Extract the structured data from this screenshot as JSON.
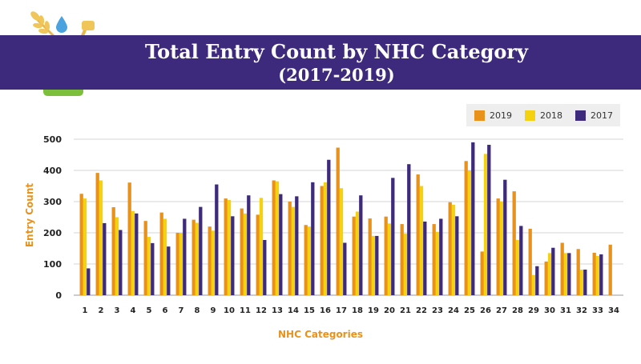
{
  "header": {
    "title": "Total Entry Count by NHC Category",
    "subtitle": "(2017-2019)"
  },
  "logo": {
    "name": "jar-with-wheat-and-water-drop-icon"
  },
  "colors": {
    "banner": "#3d2a7d",
    "s2019": "#e8921c",
    "s2018": "#f5d20f",
    "s2017": "#3d2a7d",
    "axis_label": "#e8921c",
    "gridline": "#d4d4d4"
  },
  "legend": [
    {
      "name": "2019",
      "color": "#e8921c"
    },
    {
      "name": "2018",
      "color": "#f5d20f"
    },
    {
      "name": "2017",
      "color": "#3d2a7d"
    }
  ],
  "chart_data": {
    "type": "bar",
    "title": "Total Entry Count by NHC Category (2017-2019)",
    "xlabel": "NHC Categories",
    "ylabel": "Entry Count",
    "ylim": [
      0,
      500
    ],
    "yticks": [
      0,
      100,
      200,
      300,
      400,
      500
    ],
    "grid": true,
    "legend_position": "top-right",
    "categories": [
      "1",
      "2",
      "3",
      "4",
      "5",
      "6",
      "7",
      "8",
      "9",
      "10",
      "11",
      "12",
      "13",
      "14",
      "15",
      "16",
      "17",
      "18",
      "19",
      "20",
      "21",
      "22",
      "23",
      "24",
      "25",
      "26",
      "27",
      "28",
      "29",
      "30",
      "31",
      "32",
      "33",
      "34"
    ],
    "series": [
      {
        "name": "2019",
        "values": [
          325,
          392,
          282,
          361,
          238,
          265,
          200,
          242,
          220,
          310,
          278,
          258,
          368,
          300,
          225,
          350,
          473,
          252,
          246,
          252,
          228,
          387,
          228,
          298,
          430,
          140,
          310,
          333,
          213,
          108,
          168,
          148,
          136,
          162
        ]
      },
      {
        "name": "2018",
        "values": [
          310,
          368,
          250,
          270,
          187,
          245,
          200,
          232,
          207,
          305,
          262,
          312,
          365,
          283,
          220,
          362,
          343,
          268,
          190,
          230,
          197,
          350,
          203,
          290,
          400,
          453,
          300,
          177,
          65,
          135,
          135,
          82,
          126,
          null
        ]
      },
      {
        "name": "2017",
        "values": [
          86,
          231,
          209,
          262,
          167,
          156,
          245,
          283,
          355,
          253,
          320,
          177,
          324,
          317,
          362,
          434,
          168,
          320,
          190,
          376,
          420,
          236,
          245,
          253,
          490,
          482,
          370,
          222,
          93,
          152,
          135,
          82,
          131,
          null
        ]
      }
    ]
  }
}
